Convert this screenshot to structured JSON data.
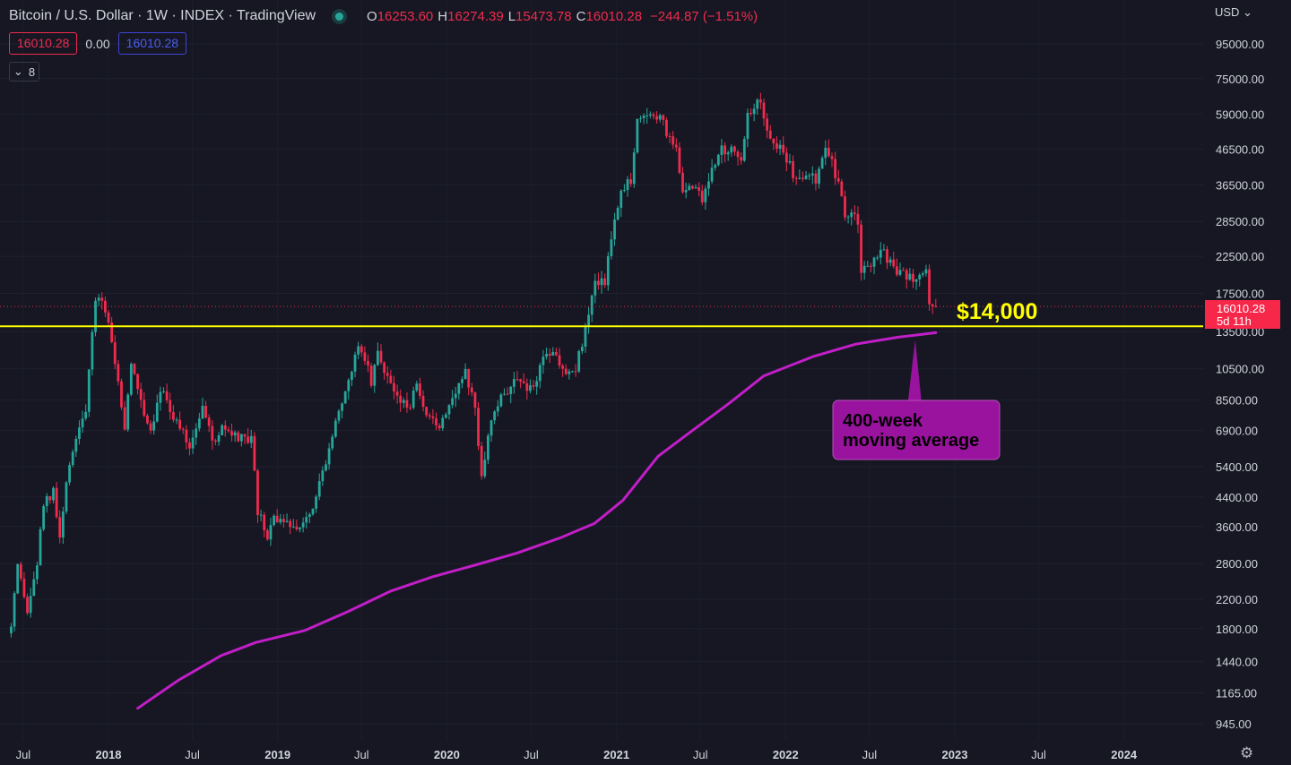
{
  "header": {
    "title": "Bitcoin / U.S. Dollar · 1W · INDEX · TradingView",
    "ohlc": [
      {
        "label": "O",
        "value": "16253.60"
      },
      {
        "label": "H",
        "value": "16274.39"
      },
      {
        "label": "L",
        "value": "15473.78"
      },
      {
        "label": "C",
        "value": "16010.28"
      }
    ],
    "change": "−244.87 (−1.51%)"
  },
  "indicators": {
    "badge_close": "16010.28",
    "zero": "0.00",
    "badge_ma": "16010.28",
    "collapsed_count": "8"
  },
  "axis": {
    "currency": "USD"
  },
  "price_tag": {
    "price": "16010.28",
    "countdown": "5d 11h"
  },
  "colors": {
    "background": "#161722",
    "up": "#26a69a",
    "down": "#ef2b4e",
    "ma": "#c21ec8",
    "level": "#ffff00",
    "callout": "#9a139e"
  },
  "chart_data": {
    "type": "candlestick",
    "title": "Bitcoin / U.S. Dollar · 1W · INDEX · TradingView",
    "y_scale": "log",
    "y_ticks": [
      945,
      1165,
      1440,
      1800,
      2200,
      2800,
      3600,
      4400,
      5400,
      6900,
      8500,
      10500,
      13500,
      17500,
      22500,
      28500,
      36500,
      46500,
      59000,
      75000,
      95000
    ],
    "y_tick_labels": [
      "945.00",
      "1165.00",
      "1440.00",
      "1800.00",
      "2200.00",
      "2800.00",
      "3600.00",
      "4400.00",
      "5400.00",
      "6900.00",
      "8500.00",
      "10500.00",
      "13500.00",
      "17500.00",
      "22500.00",
      "28500.00",
      "36500.00",
      "46500.00",
      "59000.00",
      "75000.00",
      "95000.00"
    ],
    "x_ticks": [
      {
        "date": "2017-07-01",
        "label": "Jul",
        "bold": false
      },
      {
        "date": "2018-01-01",
        "label": "2018",
        "bold": true
      },
      {
        "date": "2018-07-01",
        "label": "Jul",
        "bold": false
      },
      {
        "date": "2019-01-01",
        "label": "2019",
        "bold": true
      },
      {
        "date": "2019-07-01",
        "label": "Jul",
        "bold": false
      },
      {
        "date": "2020-01-01",
        "label": "2020",
        "bold": true
      },
      {
        "date": "2020-07-01",
        "label": "Jul",
        "bold": false
      },
      {
        "date": "2021-01-01",
        "label": "2021",
        "bold": true
      },
      {
        "date": "2021-07-01",
        "label": "Jul",
        "bold": false
      },
      {
        "date": "2022-01-01",
        "label": "2022",
        "bold": true
      },
      {
        "date": "2022-07-01",
        "label": "Jul",
        "bold": false
      },
      {
        "date": "2023-01-01",
        "label": "2023",
        "bold": true
      },
      {
        "date": "2023-07-01",
        "label": "Jul",
        "bold": false
      },
      {
        "date": "2024-01-01",
        "label": "2024",
        "bold": true
      }
    ],
    "price_path": [
      [
        "2017-06-05",
        1800
      ],
      [
        "2017-06-19",
        2700
      ],
      [
        "2017-07-10",
        2000
      ],
      [
        "2017-07-31",
        2800
      ],
      [
        "2017-08-14",
        4200
      ],
      [
        "2017-09-04",
        4500
      ],
      [
        "2017-09-18",
        3300
      ],
      [
        "2017-10-09",
        5600
      ],
      [
        "2017-10-23",
        6600
      ],
      [
        "2017-11-13",
        8000
      ],
      [
        "2017-12-04",
        16500
      ],
      [
        "2017-12-18",
        17000
      ],
      [
        "2018-01-01",
        14500
      ],
      [
        "2018-01-15",
        11000
      ],
      [
        "2018-02-05",
        7000
      ],
      [
        "2018-02-19",
        10800
      ],
      [
        "2018-03-12",
        8500
      ],
      [
        "2018-04-02",
        6900
      ],
      [
        "2018-04-23",
        9300
      ],
      [
        "2018-05-14",
        8000
      ],
      [
        "2018-06-04",
        7000
      ],
      [
        "2018-06-25",
        6200
      ],
      [
        "2018-07-23",
        8300
      ],
      [
        "2018-08-13",
        6300
      ],
      [
        "2018-09-03",
        7000
      ],
      [
        "2018-09-24",
        6600
      ],
      [
        "2018-10-15",
        6500
      ],
      [
        "2018-11-05",
        6400
      ],
      [
        "2018-11-19",
        4000
      ],
      [
        "2018-12-10",
        3300
      ],
      [
        "2018-12-24",
        3900
      ],
      [
        "2019-01-14",
        3600
      ],
      [
        "2019-02-11",
        3650
      ],
      [
        "2019-03-11",
        3950
      ],
      [
        "2019-04-08",
        5200
      ],
      [
        "2019-05-06",
        7500
      ],
      [
        "2019-05-27",
        8700
      ],
      [
        "2019-06-24",
        12500
      ],
      [
        "2019-07-08",
        11500
      ],
      [
        "2019-07-22",
        9600
      ],
      [
        "2019-08-05",
        11700
      ],
      [
        "2019-08-26",
        10000
      ],
      [
        "2019-09-23",
        8200
      ],
      [
        "2019-10-14",
        8300
      ],
      [
        "2019-10-28",
        9200
      ],
      [
        "2019-11-18",
        7400
      ],
      [
        "2019-12-16",
        7200
      ],
      [
        "2020-01-13",
        8800
      ],
      [
        "2020-02-10",
        10200
      ],
      [
        "2020-03-02",
        8000
      ],
      [
        "2020-03-16",
        5200
      ],
      [
        "2020-04-06",
        7300
      ],
      [
        "2020-05-04",
        9000
      ],
      [
        "2020-06-01",
        9600
      ],
      [
        "2020-07-06",
        9200
      ],
      [
        "2020-07-27",
        11500
      ],
      [
        "2020-08-17",
        11800
      ],
      [
        "2020-09-07",
        10400
      ],
      [
        "2020-10-05",
        10700
      ],
      [
        "2020-10-26",
        13500
      ],
      [
        "2020-11-16",
        18500
      ],
      [
        "2020-12-07",
        19200
      ],
      [
        "2020-12-28",
        29000
      ],
      [
        "2021-01-11",
        36000
      ],
      [
        "2021-02-01",
        38000
      ],
      [
        "2021-02-15",
        57000
      ],
      [
        "2021-03-08",
        58000
      ],
      [
        "2021-04-05",
        59500
      ],
      [
        "2021-04-19",
        51000
      ],
      [
        "2021-05-10",
        47000
      ],
      [
        "2021-05-24",
        35000
      ],
      [
        "2021-06-14",
        36000
      ],
      [
        "2021-07-05",
        33500
      ],
      [
        "2021-07-26",
        40000
      ],
      [
        "2021-08-16",
        47000
      ],
      [
        "2021-09-06",
        46000
      ],
      [
        "2021-09-27",
        43000
      ],
      [
        "2021-10-11",
        61000
      ],
      [
        "2021-10-25",
        62000
      ],
      [
        "2021-11-08",
        65000
      ],
      [
        "2021-11-29",
        49000
      ],
      [
        "2021-12-20",
        47500
      ],
      [
        "2022-01-10",
        42000
      ],
      [
        "2022-01-24",
        37000
      ],
      [
        "2022-02-14",
        39000
      ],
      [
        "2022-03-07",
        38000
      ],
      [
        "2022-03-28",
        47000
      ],
      [
        "2022-04-18",
        39500
      ],
      [
        "2022-05-09",
        30000
      ],
      [
        "2022-06-06",
        28500
      ],
      [
        "2022-06-13",
        20500
      ],
      [
        "2022-07-04",
        21000
      ],
      [
        "2022-07-25",
        23500
      ],
      [
        "2022-08-15",
        21500
      ],
      [
        "2022-09-05",
        19800
      ],
      [
        "2022-09-26",
        19500
      ],
      [
        "2022-10-17",
        19500
      ],
      [
        "2022-11-01",
        20600
      ],
      [
        "2022-11-07",
        16800
      ],
      [
        "2022-11-21",
        16010.28
      ]
    ],
    "overlays": [
      {
        "type": "line",
        "name": "400-week moving average",
        "points": [
          [
            "2018-03-05",
            1050
          ],
          [
            "2018-06-01",
            1270
          ],
          [
            "2018-09-01",
            1500
          ],
          [
            "2018-11-15",
            1640
          ],
          [
            "2019-03-01",
            1780
          ],
          [
            "2019-06-01",
            2020
          ],
          [
            "2019-09-01",
            2320
          ],
          [
            "2019-12-01",
            2560
          ],
          [
            "2020-03-01",
            2770
          ],
          [
            "2020-06-01",
            3010
          ],
          [
            "2020-09-01",
            3330
          ],
          [
            "2020-11-15",
            3680
          ],
          [
            "2021-01-15",
            4300
          ],
          [
            "2021-04-01",
            5800
          ],
          [
            "2021-06-01",
            6700
          ],
          [
            "2021-09-01",
            8300
          ],
          [
            "2021-11-15",
            10000
          ],
          [
            "2022-03-01",
            11400
          ],
          [
            "2022-06-01",
            12400
          ],
          [
            "2022-09-01",
            13000
          ],
          [
            "2022-11-21",
            13400
          ]
        ]
      },
      {
        "type": "hline",
        "value": 14000,
        "label": "$14,000"
      }
    ],
    "annotations": [
      {
        "type": "callout",
        "text_lines": [
          "400-week",
          "moving average"
        ],
        "points_to": [
          "2022-11-21",
          13400
        ]
      }
    ],
    "last_price": 16010.28
  }
}
